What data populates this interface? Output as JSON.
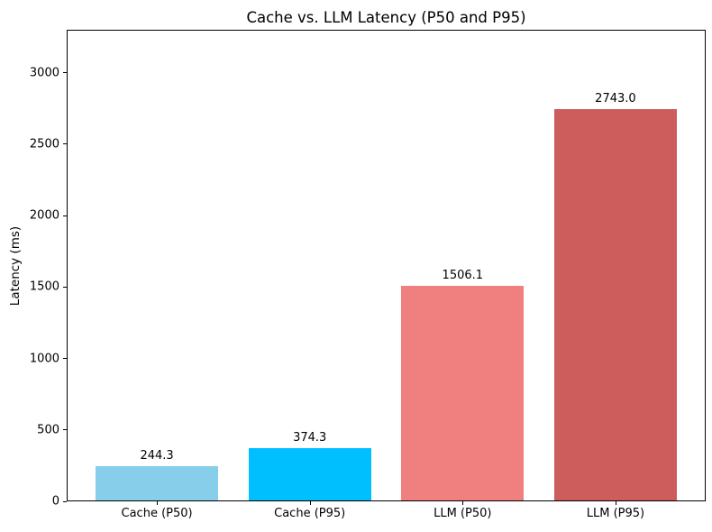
{
  "figure": {
    "background": "#ffffff",
    "text_color": "#000000"
  },
  "chart_data": {
    "type": "bar",
    "title": "Cache vs. LLM Latency (P50 and P95)",
    "xlabel": "",
    "ylabel": "Latency (ms)",
    "categories": [
      "Cache (P50)",
      "Cache (P95)",
      "LLM (P50)",
      "LLM (P95)"
    ],
    "values": [
      244.3,
      374.3,
      1506.1,
      2743.0
    ],
    "bar_value_labels": [
      "244.3",
      "374.3",
      "1506.1",
      "2743.0"
    ],
    "bar_colors": [
      "#87CEEB",
      "#00BFFF",
      "#F08080",
      "#CD5C5C"
    ],
    "yticks": [
      0,
      500,
      1000,
      1500,
      2000,
      2500,
      3000
    ],
    "ylim": [
      0,
      3300
    ],
    "xlim": [
      -0.59,
      3.59
    ],
    "bar_width_units": 0.8,
    "grid": false,
    "legend": null
  }
}
